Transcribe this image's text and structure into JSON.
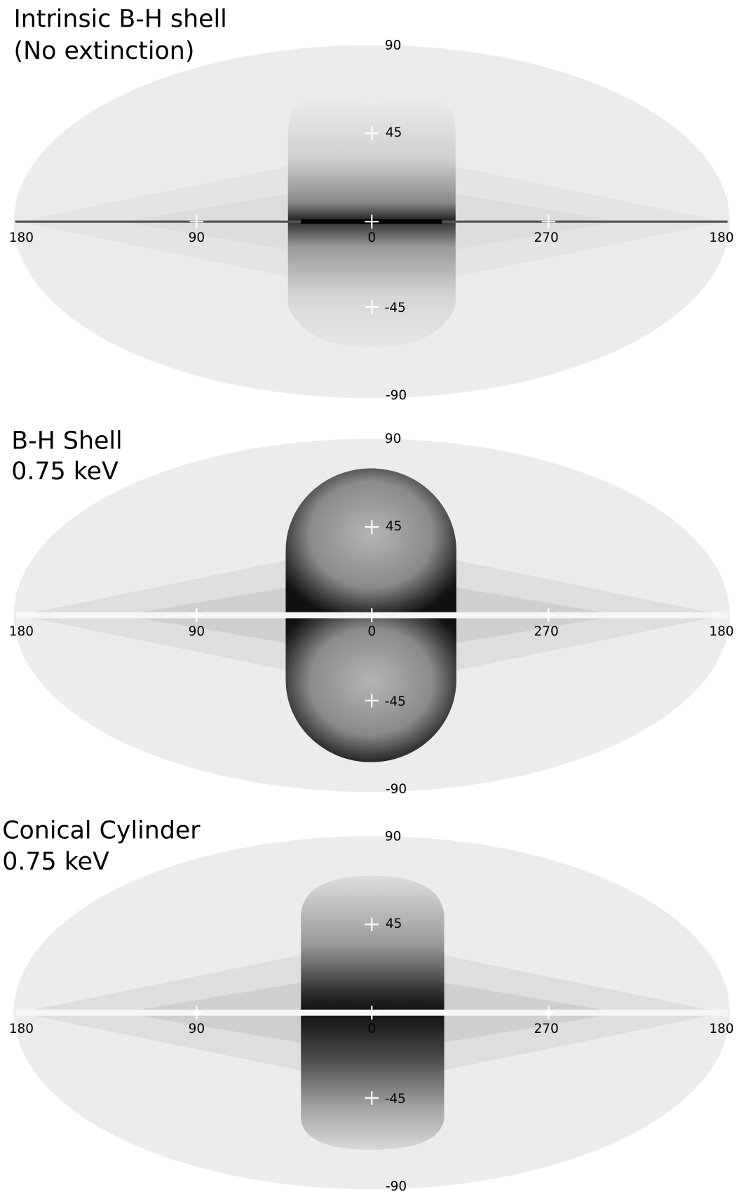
{
  "panels": [
    {
      "title": [
        "Intrinsic B-H shell",
        "(No extinction)"
      ],
      "latitude_labels": [
        "90",
        "45",
        "0",
        "-45",
        "-90"
      ],
      "longitude_labels": [
        "180",
        "90",
        "270",
        "180"
      ]
    },
    {
      "title": [
        "B-H Shell",
        "0.75 keV"
      ],
      "latitude_labels": [
        "90",
        "45",
        "0",
        "-45",
        "-90"
      ],
      "longitude_labels": [
        "180",
        "90",
        "270",
        "180"
      ]
    },
    {
      "title": [
        "Conical Cylinder",
        "0.75 keV"
      ],
      "latitude_labels": [
        "90",
        "45",
        "0",
        "-45",
        "-90"
      ],
      "longitude_labels": [
        "180",
        "90",
        "270",
        "180"
      ]
    }
  ]
}
